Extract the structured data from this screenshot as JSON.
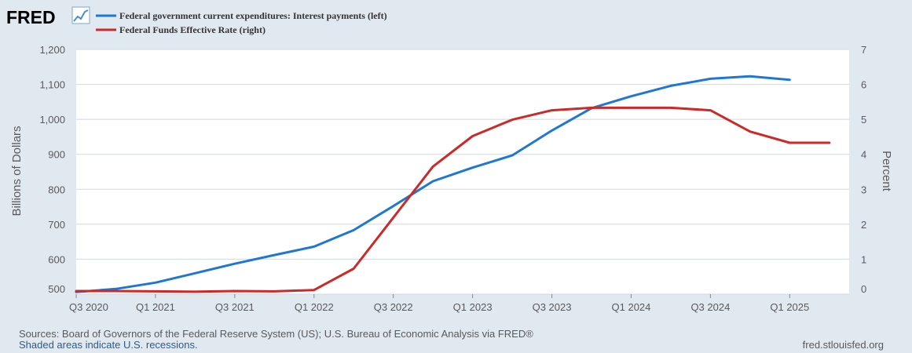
{
  "header": {
    "logo_text": "FRED",
    "logo_icon": "line-chart-icon"
  },
  "chart_data": {
    "type": "line",
    "x": [
      "Q3 2020",
      "Q4 2020",
      "Q1 2021",
      "Q2 2021",
      "Q3 2021",
      "Q4 2021",
      "Q1 2022",
      "Q2 2022",
      "Q3 2022",
      "Q4 2022",
      "Q1 2023",
      "Q2 2023",
      "Q3 2023",
      "Q4 2023",
      "Q1 2024",
      "Q2 2024",
      "Q3 2024",
      "Q4 2024",
      "Q1 2025",
      "Q2 2025"
    ],
    "xtick_labels": [
      "Q3 2020",
      "Q1 2021",
      "Q3 2021",
      "Q1 2022",
      "Q3 2022",
      "Q1 2023",
      "Q3 2023",
      "Q1 2024",
      "Q3 2024",
      "Q1 2025"
    ],
    "series": [
      {
        "name": "Federal government current expenditures: Interest payments (left)",
        "axis": "left",
        "color": "#1f77d4",
        "values": [
          506,
          515,
          533,
          560,
          587,
          612,
          636,
          683,
          752,
          823,
          862,
          897,
          968,
          1032,
          1066,
          1096,
          1116,
          1123,
          1113,
          null
        ]
      },
      {
        "name": "Federal Funds Effective Rate (right)",
        "axis": "right",
        "color": "#cc2929",
        "values": [
          0.09,
          0.09,
          0.08,
          0.07,
          0.09,
          0.08,
          0.12,
          0.73,
          2.19,
          3.65,
          4.52,
          4.99,
          5.26,
          5.33,
          5.33,
          5.33,
          5.26,
          4.65,
          4.33,
          4.33
        ]
      }
    ],
    "y_left": {
      "label": "Billions of Dollars",
      "min": 500,
      "max": 1200,
      "ticks": [
        "500",
        "600",
        "700",
        "800",
        "900",
        "1,000",
        "1,100",
        "1,200"
      ]
    },
    "y_right": {
      "label": "Percent",
      "min": 0,
      "max": 7,
      "ticks": [
        "0",
        "1",
        "2",
        "3",
        "4",
        "5",
        "6",
        "7"
      ]
    },
    "grid": true,
    "legend_position": "top-left"
  },
  "footer": {
    "sources": "Sources: Board of Governors of the Federal Reserve System (US); U.S. Bureau of Economic Analysis via FRED®",
    "recessions_note": "Shaded areas indicate U.S. recessions.",
    "site": "fred.stlouisfed.org"
  },
  "colors": {
    "background": "#e1e9f0",
    "plot_background": "#ffffff",
    "grid": "#d0d8e0"
  }
}
